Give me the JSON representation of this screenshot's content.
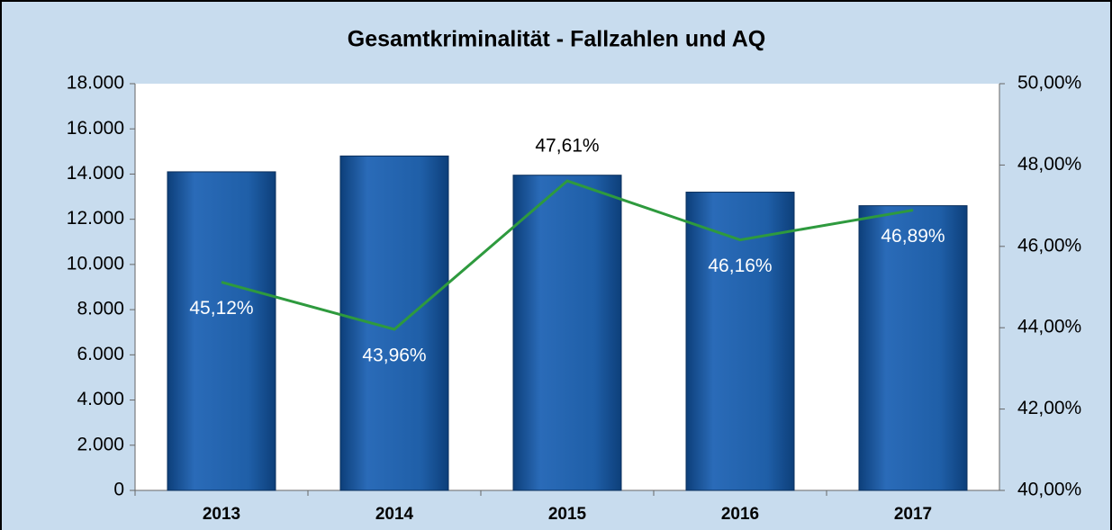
{
  "chart_data": {
    "type": "bar_line",
    "title": "Gesamtkriminalität  - Fallzahlen und AQ",
    "categories": [
      "2013",
      "2014",
      "2015",
      "2016",
      "2017"
    ],
    "series": [
      {
        "name": "Fallzahlen",
        "type": "bar",
        "color": "#1f5fa8",
        "values": [
          14100,
          14800,
          13950,
          13200,
          12600
        ]
      },
      {
        "name": "AQ",
        "type": "line",
        "axis": "y2",
        "color": "#2e9a3e",
        "values": [
          45.12,
          43.96,
          47.61,
          46.16,
          46.89
        ],
        "value_labels": [
          "45,12%",
          "43,96%",
          "47,61%",
          "46,16%",
          "46,89%"
        ]
      }
    ],
    "ylim": [
      0,
      18000
    ],
    "yticks": [
      0,
      {
        "value": 2000,
        "label": "2.000"
      },
      {
        "value": 4000,
        "label": "4.000"
      },
      {
        "value": 6000,
        "label": "6.000"
      },
      {
        "value": 8000,
        "label": "8.000"
      },
      {
        "value": 10000,
        "label": "10.000"
      },
      {
        "value": 12000,
        "label": "12.000"
      },
      {
        "value": 14000,
        "label": "14.000"
      },
      {
        "value": 16000,
        "label": "16.000"
      },
      {
        "value": 18000,
        "label": "18.000"
      }
    ],
    "y2lim": [
      40,
      50
    ],
    "y2ticks": [
      {
        "value": 40,
        "label": "40,00%"
      },
      {
        "value": 42,
        "label": "42,00%"
      },
      {
        "value": 44,
        "label": "44,00%"
      },
      {
        "value": 46,
        "label": "46,00%"
      },
      {
        "value": 48,
        "label": "48,00%"
      },
      {
        "value": 50,
        "label": "50,00%"
      }
    ]
  }
}
